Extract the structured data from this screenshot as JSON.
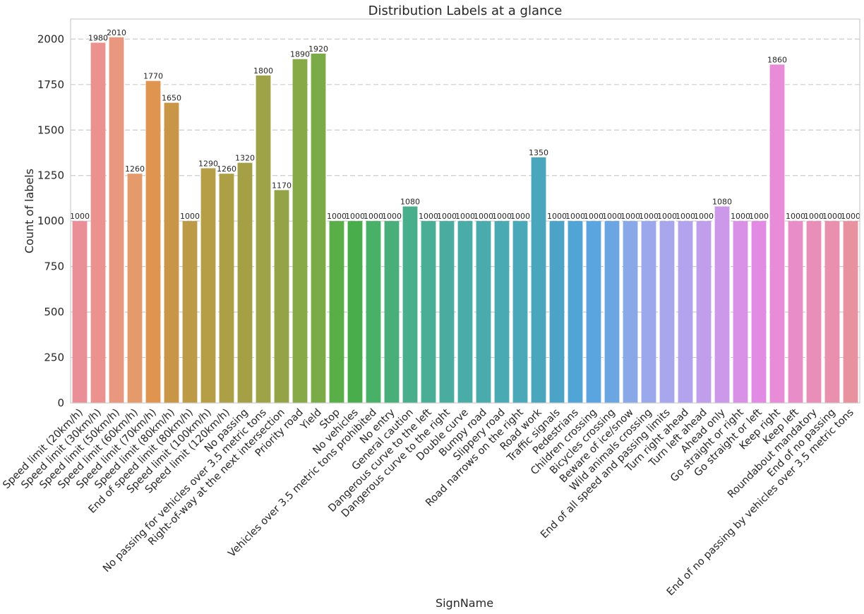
{
  "chart_data": {
    "type": "bar",
    "title": "Distribution Labels at a glance",
    "xlabel": "SignName",
    "ylabel": "Count of labels",
    "ylim": [
      0,
      2110
    ],
    "yticks": [
      0,
      250,
      500,
      750,
      1000,
      1250,
      1500,
      1750,
      2000
    ],
    "grid": "horizontal dashed",
    "legend": "none",
    "categories": [
      "Speed limit (20km/h)",
      "Speed limit (30km/h)",
      "Speed limit (50km/h)",
      "Speed limit (60km/h)",
      "Speed limit (70km/h)",
      "Speed limit (80km/h)",
      "End of speed limit (80km/h)",
      "Speed limit (100km/h)",
      "Speed limit (120km/h)",
      "No passing",
      "No passing for vehicles over 3.5 metric tons",
      "Right-of-way at the next intersection",
      "Priority road",
      "Yield",
      "Stop",
      "No vehicles",
      "Vehicles over 3.5 metric tons prohibited",
      "No entry",
      "General caution",
      "Dangerous curve to the left",
      "Dangerous curve to the right",
      "Double curve",
      "Bumpy road",
      "Slippery road",
      "Road narrows on the right",
      "Road work",
      "Traffic signals",
      "Pedestrians",
      "Children crossing",
      "Bicycles crossing",
      "Beware of ice/snow",
      "Wild animals crossing",
      "End of all speed and passing limits",
      "Turn right ahead",
      "Turn left ahead",
      "Ahead only",
      "Go straight or right",
      "Go straight or left",
      "Keep right",
      "Keep left",
      "Roundabout mandatory",
      "End of no passing",
      "End of no passing by vehicles over 3.5 metric tons"
    ],
    "values": [
      1000,
      1980,
      2010,
      1260,
      1770,
      1650,
      1000,
      1290,
      1260,
      1320,
      1800,
      1170,
      1890,
      1920,
      1000,
      1000,
      1000,
      1000,
      1080,
      1000,
      1000,
      1000,
      1000,
      1000,
      1000,
      1350,
      1000,
      1000,
      1000,
      1000,
      1000,
      1000,
      1000,
      1000,
      1000,
      1080,
      1000,
      1000,
      1860,
      1000,
      1000,
      1000,
      1000
    ],
    "colors": [
      "#ea8f97",
      "#eb928e",
      "#e9977f",
      "#e59a6b",
      "#df9550",
      "#c99547",
      "#bd9a45",
      "#b59e45",
      "#ad9f45",
      "#a59f45",
      "#9da346",
      "#93a346",
      "#87a947",
      "#7aab47",
      "#5aae47",
      "#4aad4c",
      "#48b067",
      "#48af7a",
      "#49ae8b",
      "#4aad96",
      "#4aac9f",
      "#4aaca6",
      "#4aabac",
      "#4aaab3",
      "#4aa9b9",
      "#49a6bd",
      "#4ba3c7",
      "#51a4d6",
      "#5aa5df",
      "#6ba6e3",
      "#89a8e8",
      "#9ba8eb",
      "#a8a6ec",
      "#b3a2ed",
      "#c09eec",
      "#cc98ea",
      "#d991e8",
      "#e28be4",
      "#e88cd7",
      "#e88dc7",
      "#e88eb9",
      "#e890ae",
      "#e8919f"
    ]
  }
}
